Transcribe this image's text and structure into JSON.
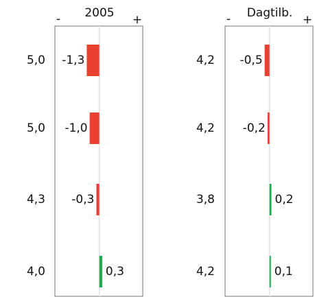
{
  "chart_data": [
    {
      "type": "bar",
      "title": "2005",
      "neg_label": "-",
      "pos_label": "+",
      "reference_values": [
        5.0,
        5.0,
        4.3,
        4.0
      ],
      "reference_labels": [
        "5,0",
        "5,0",
        "4,3",
        "4,0"
      ],
      "values": [
        -1.3,
        -1.0,
        -0.3,
        0.3
      ],
      "value_labels": [
        "-1,3",
        "-1,0",
        "-0,3",
        "0,3"
      ],
      "negative_color": "#e8412f",
      "positive_color": "#1aae4a",
      "xlim": [
        -4.6,
        4.5
      ]
    },
    {
      "type": "bar",
      "title": "Dagtilb.",
      "neg_label": "-",
      "pos_label": "+",
      "reference_values": [
        4.2,
        4.2,
        3.8,
        4.2
      ],
      "reference_labels": [
        "4,2",
        "4,2",
        "3,8",
        "4,2"
      ],
      "values": [
        -0.5,
        -0.2,
        0.2,
        0.1
      ],
      "value_labels": [
        "-0,5",
        "-0,2",
        "0,2",
        "0,1"
      ],
      "negative_color": "#e8412f",
      "positive_color": "#1aae4a",
      "xlim": [
        -4.6,
        4.5
      ]
    }
  ]
}
